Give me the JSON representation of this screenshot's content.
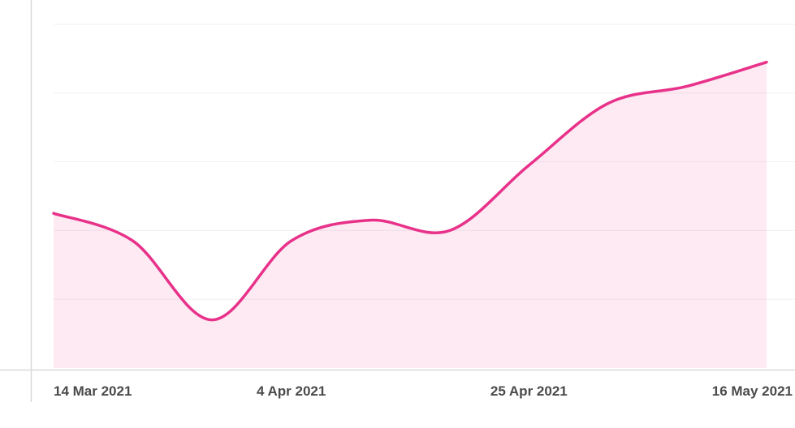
{
  "chart_data": {
    "type": "area",
    "title": "",
    "xlabel": "",
    "ylabel": "",
    "x_ticks": [
      "14 Mar 2021",
      "4 Apr 2021",
      "25 Apr 2021",
      "16 May 2021"
    ],
    "x": [
      "2021-03-14",
      "2021-03-21",
      "2021-03-28",
      "2021-04-04",
      "2021-04-11",
      "2021-04-18",
      "2021-04-25",
      "2021-05-02",
      "2021-05-09",
      "2021-05-16"
    ],
    "series": [
      {
        "values": [
          45,
          37,
          14,
          37,
          43,
          40,
          59,
          77,
          82,
          89
        ],
        "color": "#e8328a"
      }
    ],
    "ylim": [
      0,
      100
    ],
    "grid": true,
    "y_tick_labels_visible": false
  }
}
